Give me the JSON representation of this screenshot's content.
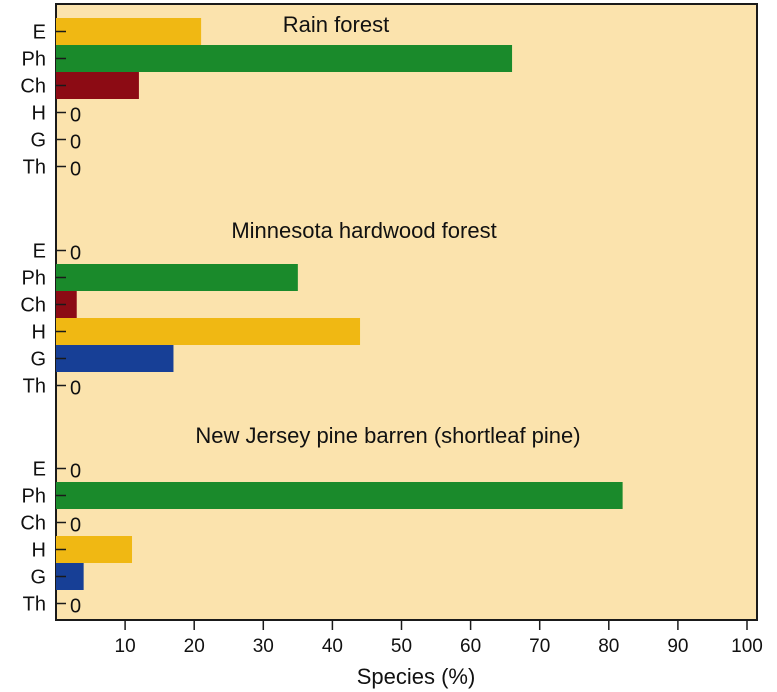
{
  "chart_data": {
    "type": "bar",
    "orientation": "horizontal",
    "xlabel": "Species (%)",
    "xlim": [
      0,
      100
    ],
    "xticks": [
      10,
      20,
      30,
      40,
      50,
      60,
      70,
      80,
      90,
      100
    ],
    "colors": {
      "background": "#fbe3ad",
      "E": "#f0b813",
      "Ph": "#1a8a2b",
      "Ch": "#8c0b14",
      "H": "#f0b813",
      "G": "#173f96",
      "zero_blue": "#1f4ea0"
    },
    "panels": [
      {
        "title": "Rain forest",
        "categories": [
          "E",
          "Ph",
          "Ch",
          "H",
          "G",
          "Th"
        ],
        "values": [
          21,
          66,
          12,
          0,
          0,
          0
        ],
        "zero_labels": [
          "",
          "",
          "",
          "0",
          "0",
          "0"
        ]
      },
      {
        "title": "Minnesota hardwood forest",
        "categories": [
          "E",
          "Ph",
          "Ch",
          "H",
          "G",
          "Th"
        ],
        "values": [
          0,
          35,
          3,
          44,
          17,
          0
        ],
        "zero_labels": [
          "0",
          "",
          "",
          "",
          "",
          "0"
        ]
      },
      {
        "title": "New Jersey pine barren  (shortleaf pine)",
        "categories": [
          "E",
          "Ph",
          "Ch",
          "H",
          "G",
          "Th"
        ],
        "values": [
          0,
          82,
          0,
          11,
          4,
          0
        ],
        "zero_labels": [
          "0",
          "",
          "0",
          "",
          "",
          "0"
        ]
      }
    ]
  }
}
